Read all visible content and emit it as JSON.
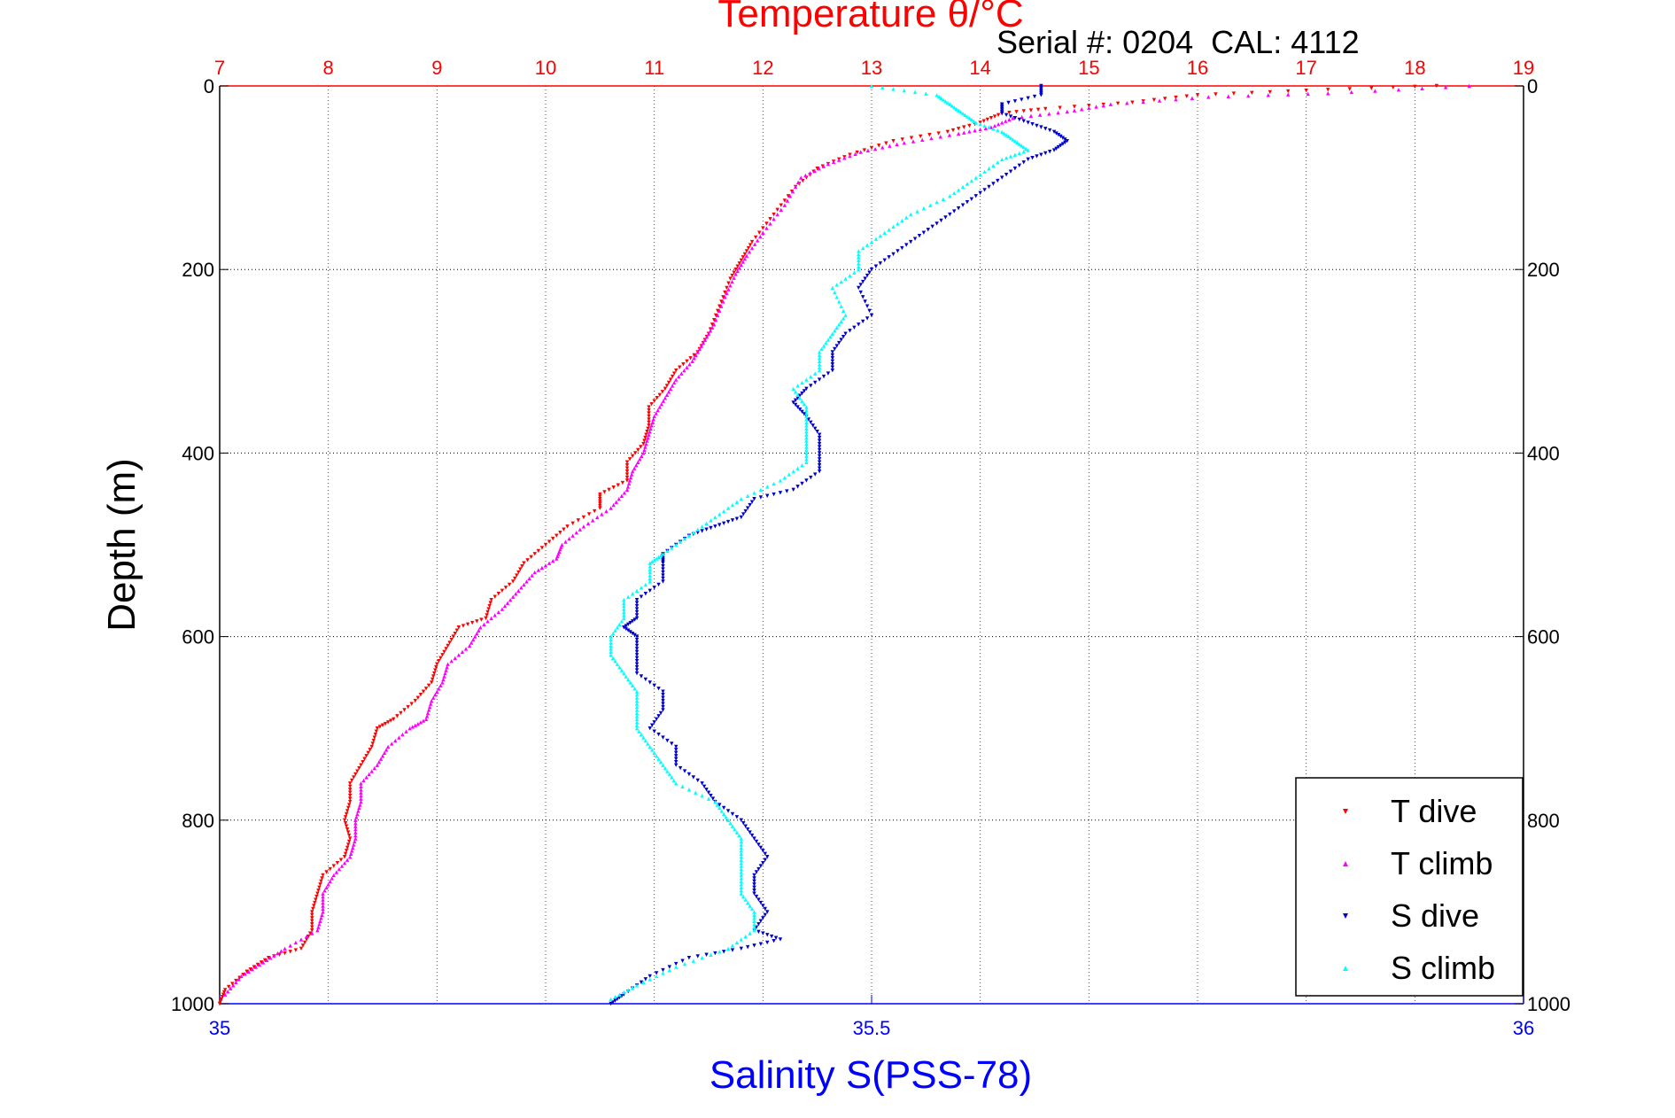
{
  "chart_data": {
    "type": "scatter",
    "title": "Temperature θ/°C",
    "annotation": "Serial #: 0204  CAL: 4112",
    "xlabel_bottom": "Salinity S(PSS-78)",
    "ylabel": "Depth (m)",
    "temperature_axis": {
      "range": [
        7,
        19
      ],
      "ticks": [
        "7",
        "8",
        "9",
        "10",
        "11",
        "12",
        "13",
        "14",
        "15",
        "16",
        "17",
        "18",
        "19"
      ],
      "color": "#ff0000",
      "grid": true
    },
    "salinity_axis": {
      "range": [
        35,
        36
      ],
      "ticks": [
        "35",
        "35.5",
        "36"
      ],
      "color": "#0000ff"
    },
    "depth_axis": {
      "range": [
        0,
        1000
      ],
      "reversed": true,
      "ticks": [
        "0",
        "200",
        "400",
        "600",
        "800",
        "1000"
      ],
      "grid": true
    },
    "legend": {
      "placement": "bottom-right",
      "entries": [
        "T dive",
        "T climb",
        "S dive",
        "S climb"
      ]
    },
    "series": [
      {
        "name": "T dive",
        "axis": "temperature",
        "color": "#ff0000",
        "marker": "triangle-down",
        "points": [
          [
            18.2,
            0
          ],
          [
            17.0,
            5
          ],
          [
            16.0,
            10
          ],
          [
            15.4,
            18
          ],
          [
            14.6,
            25
          ],
          [
            14.2,
            30
          ],
          [
            14.0,
            40
          ],
          [
            13.7,
            50
          ],
          [
            13.2,
            60
          ],
          [
            12.8,
            75
          ],
          [
            12.5,
            90
          ],
          [
            12.3,
            110
          ],
          [
            12.1,
            140
          ],
          [
            11.9,
            170
          ],
          [
            11.8,
            190
          ],
          [
            11.7,
            210
          ],
          [
            11.6,
            240
          ],
          [
            11.5,
            270
          ],
          [
            11.4,
            290
          ],
          [
            11.2,
            310
          ],
          [
            11.1,
            330
          ],
          [
            10.95,
            350
          ],
          [
            10.95,
            370
          ],
          [
            10.9,
            390
          ],
          [
            10.75,
            410
          ],
          [
            10.75,
            430
          ],
          [
            10.5,
            445
          ],
          [
            10.5,
            460
          ],
          [
            10.2,
            480
          ],
          [
            10.0,
            500
          ],
          [
            9.8,
            520
          ],
          [
            9.7,
            540
          ],
          [
            9.5,
            560
          ],
          [
            9.45,
            580
          ],
          [
            9.2,
            590
          ],
          [
            9.1,
            610
          ],
          [
            9.0,
            630
          ],
          [
            8.95,
            650
          ],
          [
            8.8,
            670
          ],
          [
            8.6,
            690
          ],
          [
            8.45,
            700
          ],
          [
            8.4,
            720
          ],
          [
            8.3,
            740
          ],
          [
            8.2,
            760
          ],
          [
            8.2,
            780
          ],
          [
            8.15,
            800
          ],
          [
            8.2,
            820
          ],
          [
            8.15,
            840
          ],
          [
            7.95,
            860
          ],
          [
            7.9,
            880
          ],
          [
            7.85,
            900
          ],
          [
            7.85,
            920
          ],
          [
            7.75,
            940
          ],
          [
            7.45,
            950
          ],
          [
            7.25,
            965
          ],
          [
            7.05,
            985
          ],
          [
            7.0,
            1000
          ]
        ]
      },
      {
        "name": "T climb",
        "axis": "temperature",
        "color": "#ff00ff",
        "marker": "triangle-up",
        "points": [
          [
            18.5,
            0
          ],
          [
            17.2,
            8
          ],
          [
            16.1,
            12
          ],
          [
            15.2,
            20
          ],
          [
            14.8,
            28
          ],
          [
            14.3,
            35
          ],
          [
            14.1,
            45
          ],
          [
            13.8,
            52
          ],
          [
            13.3,
            62
          ],
          [
            12.9,
            72
          ],
          [
            12.6,
            85
          ],
          [
            12.35,
            100
          ],
          [
            12.2,
            130
          ],
          [
            12.0,
            160
          ],
          [
            11.85,
            185
          ],
          [
            11.75,
            205
          ],
          [
            11.65,
            230
          ],
          [
            11.55,
            260
          ],
          [
            11.45,
            280
          ],
          [
            11.35,
            300
          ],
          [
            11.2,
            320
          ],
          [
            11.1,
            340
          ],
          [
            11.0,
            360
          ],
          [
            10.95,
            380
          ],
          [
            10.9,
            400
          ],
          [
            10.8,
            420
          ],
          [
            10.75,
            440
          ],
          [
            10.6,
            460
          ],
          [
            10.35,
            480
          ],
          [
            10.15,
            500
          ],
          [
            10.1,
            515
          ],
          [
            9.9,
            530
          ],
          [
            9.75,
            550
          ],
          [
            9.6,
            570
          ],
          [
            9.4,
            590
          ],
          [
            9.3,
            610
          ],
          [
            9.1,
            630
          ],
          [
            9.05,
            650
          ],
          [
            8.95,
            670
          ],
          [
            8.9,
            690
          ],
          [
            8.75,
            700
          ],
          [
            8.55,
            720
          ],
          [
            8.45,
            740
          ],
          [
            8.3,
            760
          ],
          [
            8.3,
            780
          ],
          [
            8.25,
            800
          ],
          [
            8.25,
            820
          ],
          [
            8.2,
            840
          ],
          [
            8.05,
            860
          ],
          [
            7.95,
            880
          ],
          [
            7.95,
            900
          ],
          [
            7.9,
            920
          ],
          [
            7.6,
            940
          ],
          [
            7.4,
            955
          ],
          [
            7.2,
            970
          ],
          [
            7.05,
            990
          ]
        ]
      },
      {
        "name": "S dive",
        "axis": "salinity",
        "color": "#0000cc",
        "marker": "triangle-down",
        "points": [
          [
            35.63,
            0
          ],
          [
            35.63,
            10
          ],
          [
            35.6,
            20
          ],
          [
            35.6,
            30
          ],
          [
            35.62,
            40
          ],
          [
            35.64,
            50
          ],
          [
            35.65,
            60
          ],
          [
            35.64,
            70
          ],
          [
            35.62,
            80
          ],
          [
            35.6,
            100
          ],
          [
            35.58,
            120
          ],
          [
            35.56,
            140
          ],
          [
            35.54,
            160
          ],
          [
            35.52,
            180
          ],
          [
            35.5,
            200
          ],
          [
            35.49,
            220
          ],
          [
            35.5,
            250
          ],
          [
            35.48,
            270
          ],
          [
            35.47,
            290
          ],
          [
            35.47,
            310
          ],
          [
            35.45,
            330
          ],
          [
            35.44,
            345
          ],
          [
            35.45,
            360
          ],
          [
            35.46,
            380
          ],
          [
            35.46,
            400
          ],
          [
            35.46,
            420
          ],
          [
            35.44,
            440
          ],
          [
            35.41,
            450
          ],
          [
            35.4,
            470
          ],
          [
            35.38,
            480
          ],
          [
            35.36,
            490
          ],
          [
            35.34,
            510
          ],
          [
            35.34,
            520
          ],
          [
            35.34,
            540
          ],
          [
            35.32,
            560
          ],
          [
            35.32,
            580
          ],
          [
            35.31,
            590
          ],
          [
            35.32,
            600
          ],
          [
            35.32,
            620
          ],
          [
            35.32,
            640
          ],
          [
            35.34,
            660
          ],
          [
            35.34,
            680
          ],
          [
            35.33,
            700
          ],
          [
            35.35,
            720
          ],
          [
            35.35,
            740
          ],
          [
            35.37,
            760
          ],
          [
            35.38,
            780
          ],
          [
            35.4,
            800
          ],
          [
            35.41,
            820
          ],
          [
            35.42,
            840
          ],
          [
            35.41,
            860
          ],
          [
            35.41,
            880
          ],
          [
            35.42,
            900
          ],
          [
            35.41,
            920
          ],
          [
            35.43,
            930
          ],
          [
            35.4,
            940
          ],
          [
            35.36,
            950
          ],
          [
            35.33,
            970
          ],
          [
            35.31,
            990
          ],
          [
            35.3,
            1000
          ]
        ]
      },
      {
        "name": "S climb",
        "axis": "salinity",
        "color": "#00ffff",
        "marker": "triangle-up",
        "points": [
          [
            35.5,
            0
          ],
          [
            35.55,
            10
          ],
          [
            35.56,
            20
          ],
          [
            35.57,
            30
          ],
          [
            35.58,
            40
          ],
          [
            35.6,
            50
          ],
          [
            35.61,
            60
          ],
          [
            35.62,
            70
          ],
          [
            35.6,
            80
          ],
          [
            35.58,
            100
          ],
          [
            35.56,
            120
          ],
          [
            35.53,
            140
          ],
          [
            35.51,
            160
          ],
          [
            35.49,
            180
          ],
          [
            35.49,
            200
          ],
          [
            35.47,
            220
          ],
          [
            35.48,
            250
          ],
          [
            35.47,
            270
          ],
          [
            35.46,
            290
          ],
          [
            35.46,
            310
          ],
          [
            35.44,
            330
          ],
          [
            35.45,
            350
          ],
          [
            35.45,
            370
          ],
          [
            35.45,
            390
          ],
          [
            35.45,
            410
          ],
          [
            35.43,
            430
          ],
          [
            35.4,
            450
          ],
          [
            35.38,
            470
          ],
          [
            35.36,
            490
          ],
          [
            35.34,
            510
          ],
          [
            35.33,
            520
          ],
          [
            35.33,
            540
          ],
          [
            35.31,
            560
          ],
          [
            35.31,
            580
          ],
          [
            35.3,
            600
          ],
          [
            35.3,
            620
          ],
          [
            35.31,
            640
          ],
          [
            35.32,
            660
          ],
          [
            35.32,
            680
          ],
          [
            35.32,
            700
          ],
          [
            35.33,
            720
          ],
          [
            35.34,
            740
          ],
          [
            35.35,
            760
          ],
          [
            35.38,
            780
          ],
          [
            35.39,
            800
          ],
          [
            35.4,
            820
          ],
          [
            35.4,
            840
          ],
          [
            35.4,
            860
          ],
          [
            35.4,
            880
          ],
          [
            35.41,
            900
          ],
          [
            35.41,
            920
          ],
          [
            35.39,
            940
          ],
          [
            35.35,
            960
          ],
          [
            35.32,
            980
          ],
          [
            35.3,
            995
          ]
        ]
      }
    ]
  }
}
